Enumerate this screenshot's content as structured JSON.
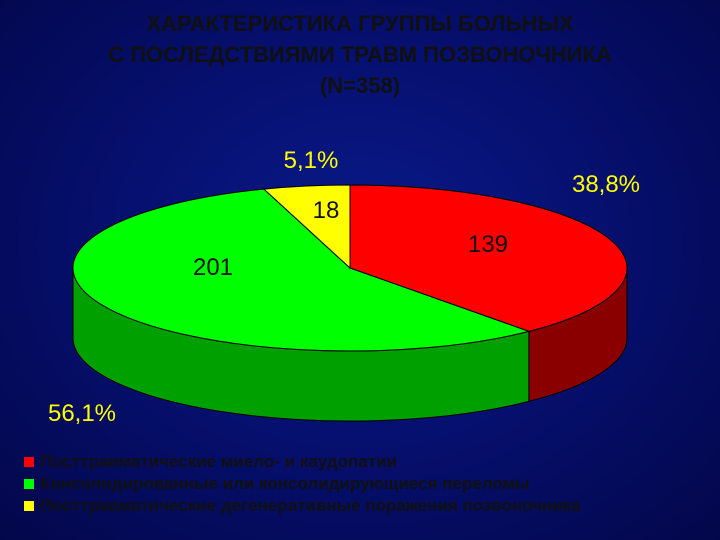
{
  "title_lines": [
    "ХАРАКТЕРИСТИКА ГРУППЫ БОЛЬНЫХ",
    "С ПОСЛЕДСТВИЯМИ ТРАВМ ПОЗВОНОЧНИКА",
    "(N=358)"
  ],
  "chart_data": {
    "type": "pie",
    "style": "3d",
    "total_label": "N=358",
    "slices": [
      {
        "label": "Посттравматические миело- и каудопатии",
        "value": 139,
        "percent": "38,8%",
        "color": "#ff0000",
        "side_color": "#8a0000"
      },
      {
        "label": "Консолидированные или консолидирующиеся переломы",
        "value": 201,
        "percent": "56,1%",
        "color": "#00ff00",
        "side_color": "#00a000"
      },
      {
        "label": "Посттравматические дегенеративные поражения позвоночника",
        "value": 18,
        "percent": "5,1%",
        "color": "#ffff00",
        "side_color": "#9a9a00"
      }
    ],
    "legend_position": "bottom-left"
  },
  "legend": [
    {
      "label": "Посттравматические миело- и каудопатии",
      "color": "#ff0000"
    },
    {
      "label": "Консолидированные или консолидирующиеся переломы",
      "color": "#00ff00"
    },
    {
      "label": "Посттравматические дегенеративные поражения позвоночника",
      "color": "#ffff00"
    }
  ]
}
